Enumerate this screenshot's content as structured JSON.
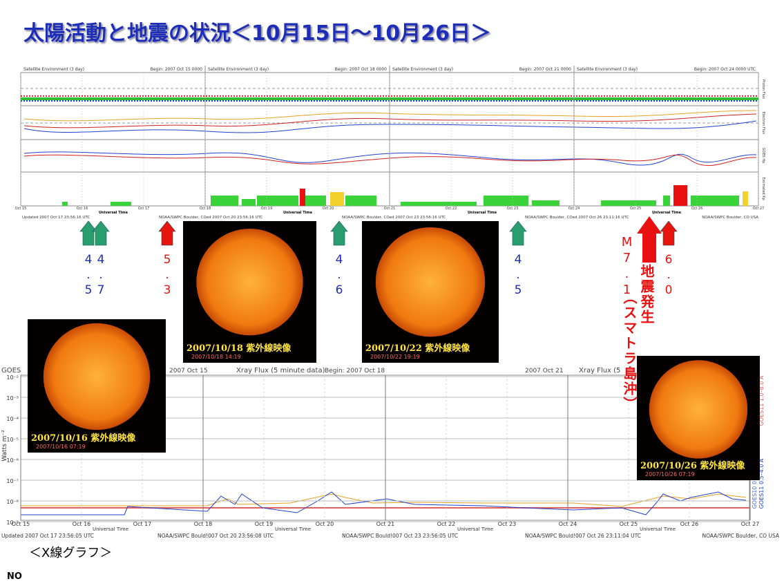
{
  "title": "太陽活動と地震の状況＜10月15日～10月26日＞",
  "monitor": {
    "panels": [
      {
        "header": "Satellite Environment (3 day)",
        "begin": "Begin: 2007 Oct 15 0000"
      },
      {
        "header": "Satellite Environment (3 day)",
        "begin": "Begin: 2007 Oct 18 0000"
      },
      {
        "header": "Satellite Environment (3 day)",
        "begin": "Begin: 2007 Oct 21 0000"
      },
      {
        "header": "Satellite Environment (3 day)",
        "begin": "Begin: 2007 Oct 24 0000 UTC"
      }
    ],
    "row_labels": [
      "Proton Flux",
      "Electron Flux",
      "GOES Hp",
      "Estimated Kp"
    ],
    "dates": [
      "Oct 15",
      "Oct 16",
      "Oct 17",
      "Oct 18",
      "Oct 19",
      "Oct 20",
      "Oct 21",
      "Oct 22",
      "Oct 23",
      "Oct 24",
      "Oct 25",
      "Oct 26",
      "Oct 27"
    ],
    "xlabel": "Universal Time",
    "footers": [
      "Updated 2007 Oct 17 23:56:16 UTC",
      "NOAA/SWPC Boulder, COed 2007 Oct 20 23:56:16 UTC",
      "NOAA/SWPC Boulder, COed 2007 Oct 23 23:56:16 UTC",
      "NOAA/SWPC Boulder, COed 2007 Oct 26 23:11:16 UTC",
      "NOAA/SWPC Boulder, CO USA"
    ]
  },
  "arrows": [
    {
      "text": "4.5",
      "color": "#2a9d6e"
    },
    {
      "text": "4.7",
      "color": "#2a9d6e"
    },
    {
      "text": "5.3",
      "color": "#e8150f"
    },
    {
      "text": "4.6",
      "color": "#2a9d6e"
    },
    {
      "text": "4.5",
      "color": "#2a9d6e"
    },
    {
      "text": "6.0",
      "color": "#e8150f"
    }
  ],
  "quake": {
    "magnitude": "M7.1",
    "label": "地震発生",
    "place": "（スマトラ島沖）"
  },
  "suns": [
    {
      "caption": "2007/10/16 紫外線映像",
      "stamp": "2007/10/16 07:19"
    },
    {
      "caption": "2007/10/18 紫外線映像",
      "stamp": "2007/10/18 14:19"
    },
    {
      "caption": "2007/10/22 紫外線映像",
      "stamp": "2007/10/22 19:19"
    },
    {
      "caption": "2007/10/26 紫外線映像",
      "stamp": "2007/10/26 07:19"
    }
  ],
  "xray": {
    "titles": [
      "GOES",
      "Xray Flux (5 minute data)",
      "Xray Flux (5"
    ],
    "begins": [
      "2007 Oct 15",
      "Begin: 2007 Oct 18",
      "2007 Oct 21"
    ],
    "ylabel": "Watts m⁻²",
    "yticks": [
      "10⁻²",
      "10⁻³",
      "10⁻⁴",
      "10⁻⁵",
      "10⁻⁶",
      "10⁻⁷",
      "10⁻⁸",
      "10⁻⁹"
    ],
    "dates": [
      "Oct 15",
      "Oct 16",
      "Oct 17",
      "Oct 18",
      "Oct 19",
      "Oct 20",
      "Oct 21",
      "Oct 22",
      "Oct 23",
      "Oct 24",
      "Oct 25",
      "Oct 26",
      "Oct 27"
    ],
    "xlabel": "Universal Time",
    "legend": [
      "GOES10 1.0–8.0 A",
      "GOES11 1.0–8.0 A",
      "GOES10 0.5–4.0 A",
      "GOES11 0.5–4.0 A"
    ],
    "footers": [
      "Updated 2007 Oct 17 23:56:05 UTC",
      "NOAA/SWPC Bould!007 Oct 20 23:56:08 UTC",
      "NOAA/SWPC Bould!007 Oct 23 23:56:05 UTC",
      "NOAA/SWPC Bould!007 Oct 26 23:11:04 UTC",
      "NOAA/SWPC Boulder, CO USA"
    ]
  },
  "footer": {
    "caption": "＜X線グラフ＞",
    "note": "NO"
  }
}
